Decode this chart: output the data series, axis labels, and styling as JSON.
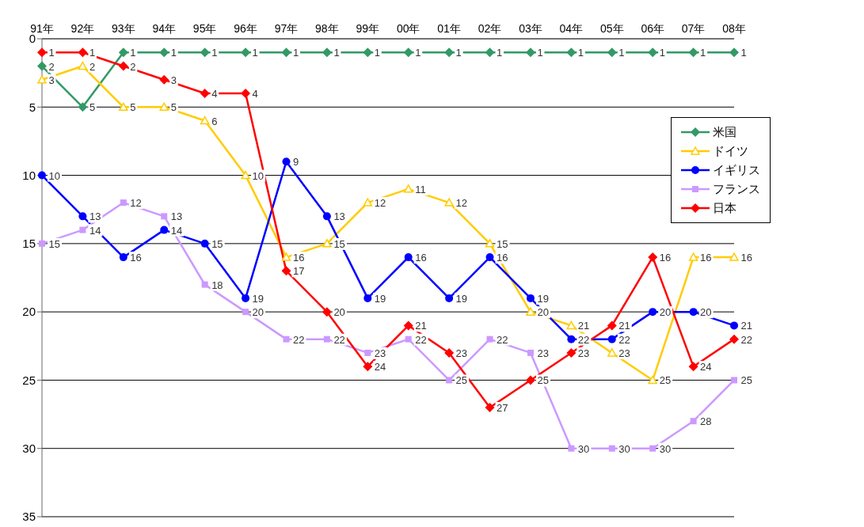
{
  "chart_data": {
    "type": "line",
    "categories": [
      "91年",
      "92年",
      "93年",
      "94年",
      "95年",
      "96年",
      "97年",
      "98年",
      "99年",
      "00年",
      "01年",
      "02年",
      "03年",
      "04年",
      "05年",
      "06年",
      "07年",
      "08年"
    ],
    "series": [
      {
        "name": "米国",
        "color": "#339966",
        "marker": "diamond",
        "values": [
          2,
          5,
          1,
          1,
          1,
          1,
          1,
          1,
          1,
          1,
          1,
          1,
          1,
          1,
          1,
          1,
          1,
          1
        ]
      },
      {
        "name": "ドイツ",
        "color": "#ffcc00",
        "marker": "triangle",
        "values": [
          3,
          2,
          5,
          5,
          6,
          10,
          16,
          15,
          12,
          11,
          12,
          15,
          20,
          21,
          23,
          25,
          16,
          16
        ]
      },
      {
        "name": "イギリス",
        "color": "#0000ff",
        "marker": "circle",
        "values": [
          10,
          13,
          16,
          14,
          15,
          19,
          9,
          13,
          19,
          16,
          19,
          16,
          19,
          22,
          22,
          20,
          20,
          21
        ]
      },
      {
        "name": "フランス",
        "color": "#cc99ff",
        "marker": "square",
        "values": [
          15,
          14,
          12,
          13,
          18,
          20,
          22,
          22,
          23,
          22,
          25,
          22,
          23,
          30,
          30,
          30,
          28,
          25
        ]
      },
      {
        "name": "日本",
        "color": "#ff0000",
        "marker": "diamond",
        "values": [
          1,
          1,
          2,
          3,
          4,
          4,
          17,
          20,
          24,
          21,
          23,
          27,
          25,
          23,
          21,
          16,
          24,
          22
        ]
      }
    ],
    "ylim": [
      35,
      0
    ],
    "yticks": [
      0,
      5,
      10,
      15,
      20,
      25,
      30,
      35
    ],
    "grid": "y",
    "legend": "right",
    "data_labels": true
  }
}
